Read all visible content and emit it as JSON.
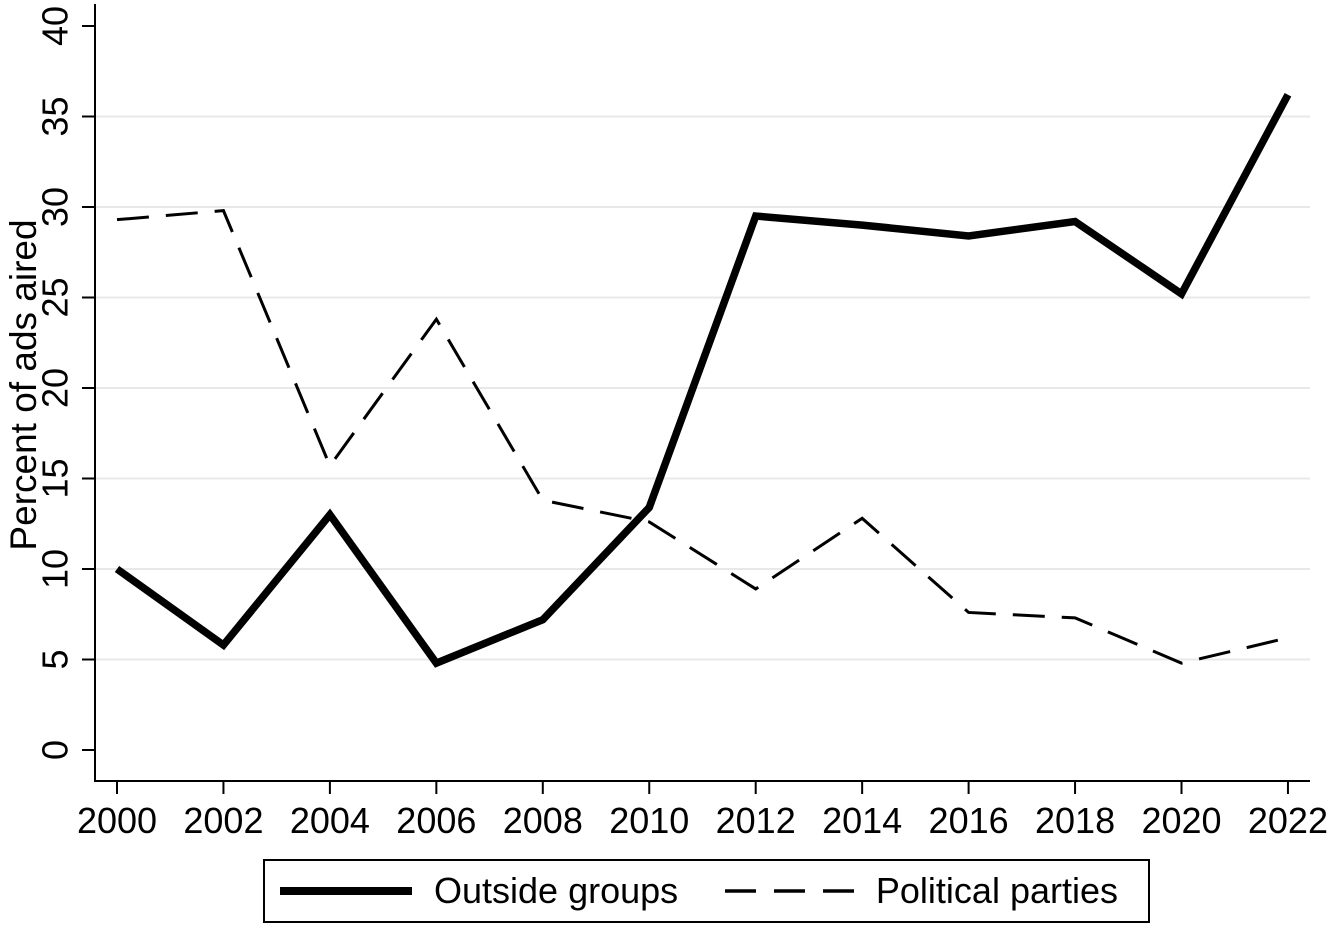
{
  "figure": {
    "background_color": "#ffffff",
    "text_color": "#000000",
    "gridline_color": "#e8e8e8"
  },
  "chart_data": {
    "type": "line",
    "title": "",
    "xlabel": "",
    "ylabel": "Percent of ads aired",
    "x": [
      2000,
      2002,
      2004,
      2006,
      2008,
      2010,
      2012,
      2014,
      2016,
      2018,
      2020,
      2022
    ],
    "y_ticks": [
      0,
      5,
      10,
      15,
      20,
      25,
      30,
      35,
      40
    ],
    "ylim": [
      0,
      40
    ],
    "grid": "horizontal gridlines at 5 through 35, light gray",
    "legend_position": "bottom-center-boxed",
    "series": [
      {
        "name": "Outside groups",
        "style": "solid-thick",
        "color": "#000000",
        "values": [
          10.0,
          5.8,
          13.0,
          4.8,
          7.2,
          13.4,
          29.5,
          29.0,
          28.4,
          29.2,
          25.2,
          36.2
        ]
      },
      {
        "name": "Political parties",
        "style": "dashed",
        "color": "#000000",
        "values": [
          29.3,
          29.8,
          15.7,
          23.8,
          13.8,
          12.6,
          8.9,
          12.8,
          7.6,
          7.3,
          4.8,
          6.2
        ]
      }
    ]
  }
}
